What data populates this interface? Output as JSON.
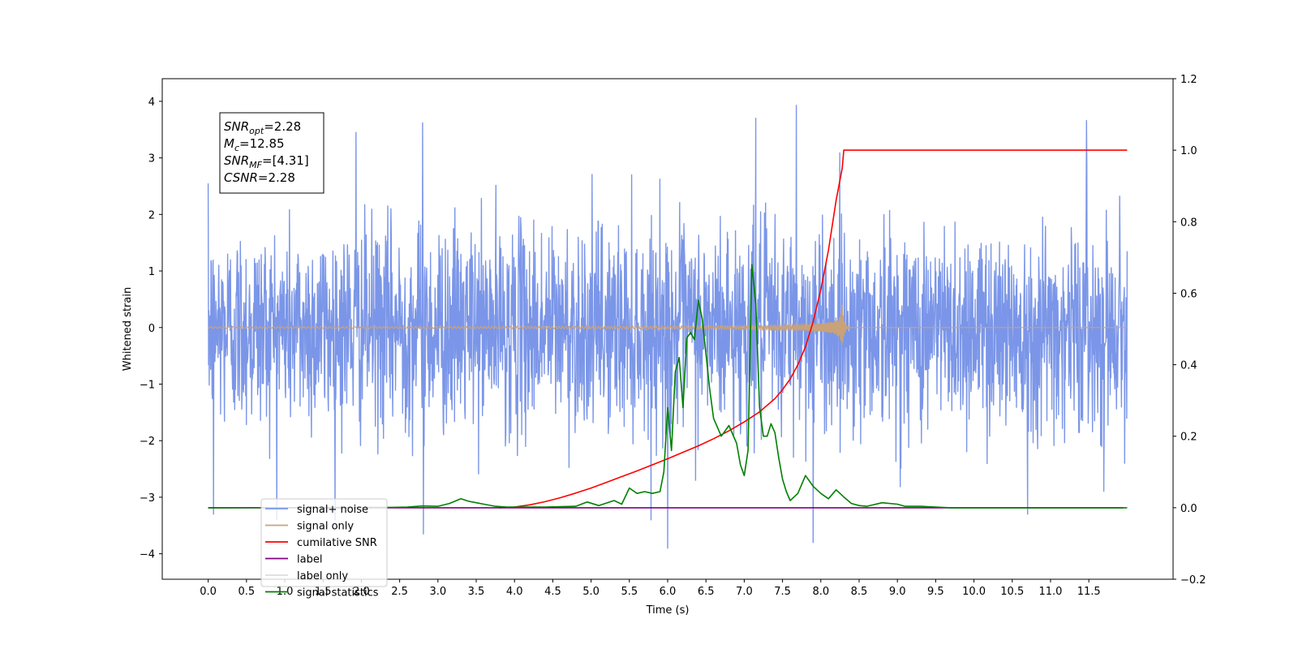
{
  "chart_data": {
    "type": "line",
    "xlabel": "Time (s)",
    "ylabel": "Whitened strain",
    "ylabel_right": "",
    "xlim": [
      -0.6,
      12.6
    ],
    "ylim": [
      -4.45,
      4.4
    ],
    "ylim_right": [
      -0.2,
      1.2
    ],
    "x_ticks": [
      0.0,
      0.5,
      1.0,
      1.5,
      2.0,
      2.5,
      3.0,
      3.5,
      4.0,
      4.5,
      5.0,
      5.5,
      6.0,
      6.5,
      7.0,
      7.5,
      8.0,
      8.5,
      9.0,
      9.5,
      10.0,
      10.5,
      11.0,
      11.5
    ],
    "x_tick_labels": [
      "0.0",
      "0.5",
      "1.0",
      "1.5",
      "2.0",
      "2.5",
      "3.0",
      "3.5",
      "4.0",
      "4.5",
      "5.0",
      "5.5",
      "6.0",
      "6.5",
      "7.0",
      "7.5",
      "8.0",
      "8.5",
      "9.0",
      "9.5",
      "10.0",
      "10.5",
      "11.0",
      "11.5"
    ],
    "y_ticks": [
      4,
      3,
      2,
      1,
      0,
      -1,
      -2,
      -3,
      -4
    ],
    "y_tick_labels": [
      "4",
      "3",
      "2",
      "1",
      "0",
      "−1",
      "−2",
      "−3",
      "−4"
    ],
    "y_ticks_right": [
      1.2,
      1.0,
      0.8,
      0.6,
      0.4,
      0.2,
      0.0,
      -0.2
    ],
    "y_tick_labels_right": [
      "1.2",
      "1.0",
      "0.8",
      "0.6",
      "0.4",
      "0.2",
      "0.0",
      "−0.2"
    ],
    "legend_position": "lower-left",
    "grid": false,
    "annotation": {
      "lines": [
        {
          "base": "SNR",
          "sub": "opt",
          "value": "=2.28"
        },
        {
          "base": "M",
          "sub": "c",
          "value": "=12.85"
        },
        {
          "base": "SNR",
          "sub": "MF",
          "value": "=[4.31]"
        },
        {
          "base": "CSNR",
          "sub": "",
          "value": "=2.28"
        }
      ]
    },
    "series": [
      {
        "name": "signal+ noise",
        "color": "#7b96e8",
        "axis": "left",
        "style": "noise",
        "x_range": [
          0.0,
          12.0
        ],
        "typical_range": [
          -1.8,
          1.8
        ],
        "extremes": [
          {
            "x": 0.0,
            "y": 2.55
          },
          {
            "x": 0.07,
            "y": -3.3
          },
          {
            "x": 1.93,
            "y": 3.45
          },
          {
            "x": 2.8,
            "y": 3.62
          },
          {
            "x": 2.81,
            "y": -3.65
          },
          {
            "x": 6.0,
            "y": -3.9
          },
          {
            "x": 7.15,
            "y": 3.7
          },
          {
            "x": 7.68,
            "y": 3.93
          },
          {
            "x": 7.9,
            "y": -3.8
          },
          {
            "x": 11.47,
            "y": 3.66
          },
          {
            "x": 10.7,
            "y": -3.3
          }
        ]
      },
      {
        "name": "signal only",
        "color": "#c9a27a",
        "axis": "left",
        "style": "chirp",
        "x_range": [
          0.0,
          12.0
        ],
        "merger_time": 8.28,
        "peak_amplitude": 0.4
      },
      {
        "name": "cumilative SNR",
        "color": "#ff0000",
        "axis": "right",
        "x": [
          3.8,
          4.0,
          4.2,
          4.4,
          4.6,
          4.8,
          5.0,
          5.2,
          5.4,
          5.6,
          5.8,
          6.0,
          6.2,
          6.4,
          6.6,
          6.8,
          7.0,
          7.2,
          7.4,
          7.5,
          7.6,
          7.7,
          7.8,
          7.9,
          8.0,
          8.1,
          8.2,
          8.28,
          8.3,
          12.0
        ],
        "y": [
          0.0,
          0.002,
          0.008,
          0.017,
          0.028,
          0.041,
          0.055,
          0.071,
          0.087,
          0.103,
          0.12,
          0.137,
          0.155,
          0.173,
          0.193,
          0.215,
          0.24,
          0.268,
          0.305,
          0.33,
          0.36,
          0.4,
          0.45,
          0.52,
          0.61,
          0.72,
          0.86,
          0.95,
          1.0,
          1.0
        ]
      },
      {
        "name": "label",
        "color": "#800080",
        "axis": "right",
        "x": [
          0.0,
          11.95
        ],
        "y": [
          0.0,
          0.0
        ]
      },
      {
        "name": "label only",
        "color": "#dddddd",
        "axis": "right",
        "x": [],
        "y": []
      },
      {
        "name": "signal statistics",
        "color": "#008000",
        "axis": "right",
        "x": [
          0.0,
          2.4,
          2.6,
          2.8,
          3.0,
          3.15,
          3.3,
          3.4,
          3.5,
          3.6,
          3.75,
          3.9,
          4.4,
          4.8,
          4.95,
          5.1,
          5.3,
          5.4,
          5.5,
          5.6,
          5.7,
          5.8,
          5.9,
          5.95,
          6.0,
          6.05,
          6.1,
          6.15,
          6.2,
          6.25,
          6.3,
          6.35,
          6.4,
          6.45,
          6.5,
          6.55,
          6.6,
          6.7,
          6.8,
          6.9,
          6.95,
          7.0,
          7.05,
          7.1,
          7.15,
          7.2,
          7.25,
          7.3,
          7.35,
          7.4,
          7.45,
          7.5,
          7.55,
          7.6,
          7.7,
          7.8,
          7.9,
          8.0,
          8.1,
          8.2,
          8.3,
          8.4,
          8.5,
          8.6,
          8.8,
          9.0,
          9.1,
          9.3,
          9.5,
          9.7,
          12.0
        ],
        "y": [
          0.0,
          0.001,
          0.002,
          0.005,
          0.004,
          0.012,
          0.025,
          0.018,
          0.014,
          0.01,
          0.004,
          0.002,
          0.002,
          0.004,
          0.016,
          0.006,
          0.02,
          0.01,
          0.055,
          0.04,
          0.045,
          0.04,
          0.045,
          0.1,
          0.28,
          0.16,
          0.38,
          0.42,
          0.28,
          0.475,
          0.49,
          0.47,
          0.58,
          0.53,
          0.43,
          0.33,
          0.25,
          0.2,
          0.23,
          0.18,
          0.12,
          0.09,
          0.16,
          0.68,
          0.57,
          0.28,
          0.2,
          0.2,
          0.235,
          0.21,
          0.14,
          0.08,
          0.045,
          0.02,
          0.04,
          0.09,
          0.06,
          0.04,
          0.025,
          0.05,
          0.03,
          0.012,
          0.006,
          0.004,
          0.014,
          0.01,
          0.004,
          0.004,
          0.002,
          0.0,
          0.0
        ]
      }
    ]
  }
}
